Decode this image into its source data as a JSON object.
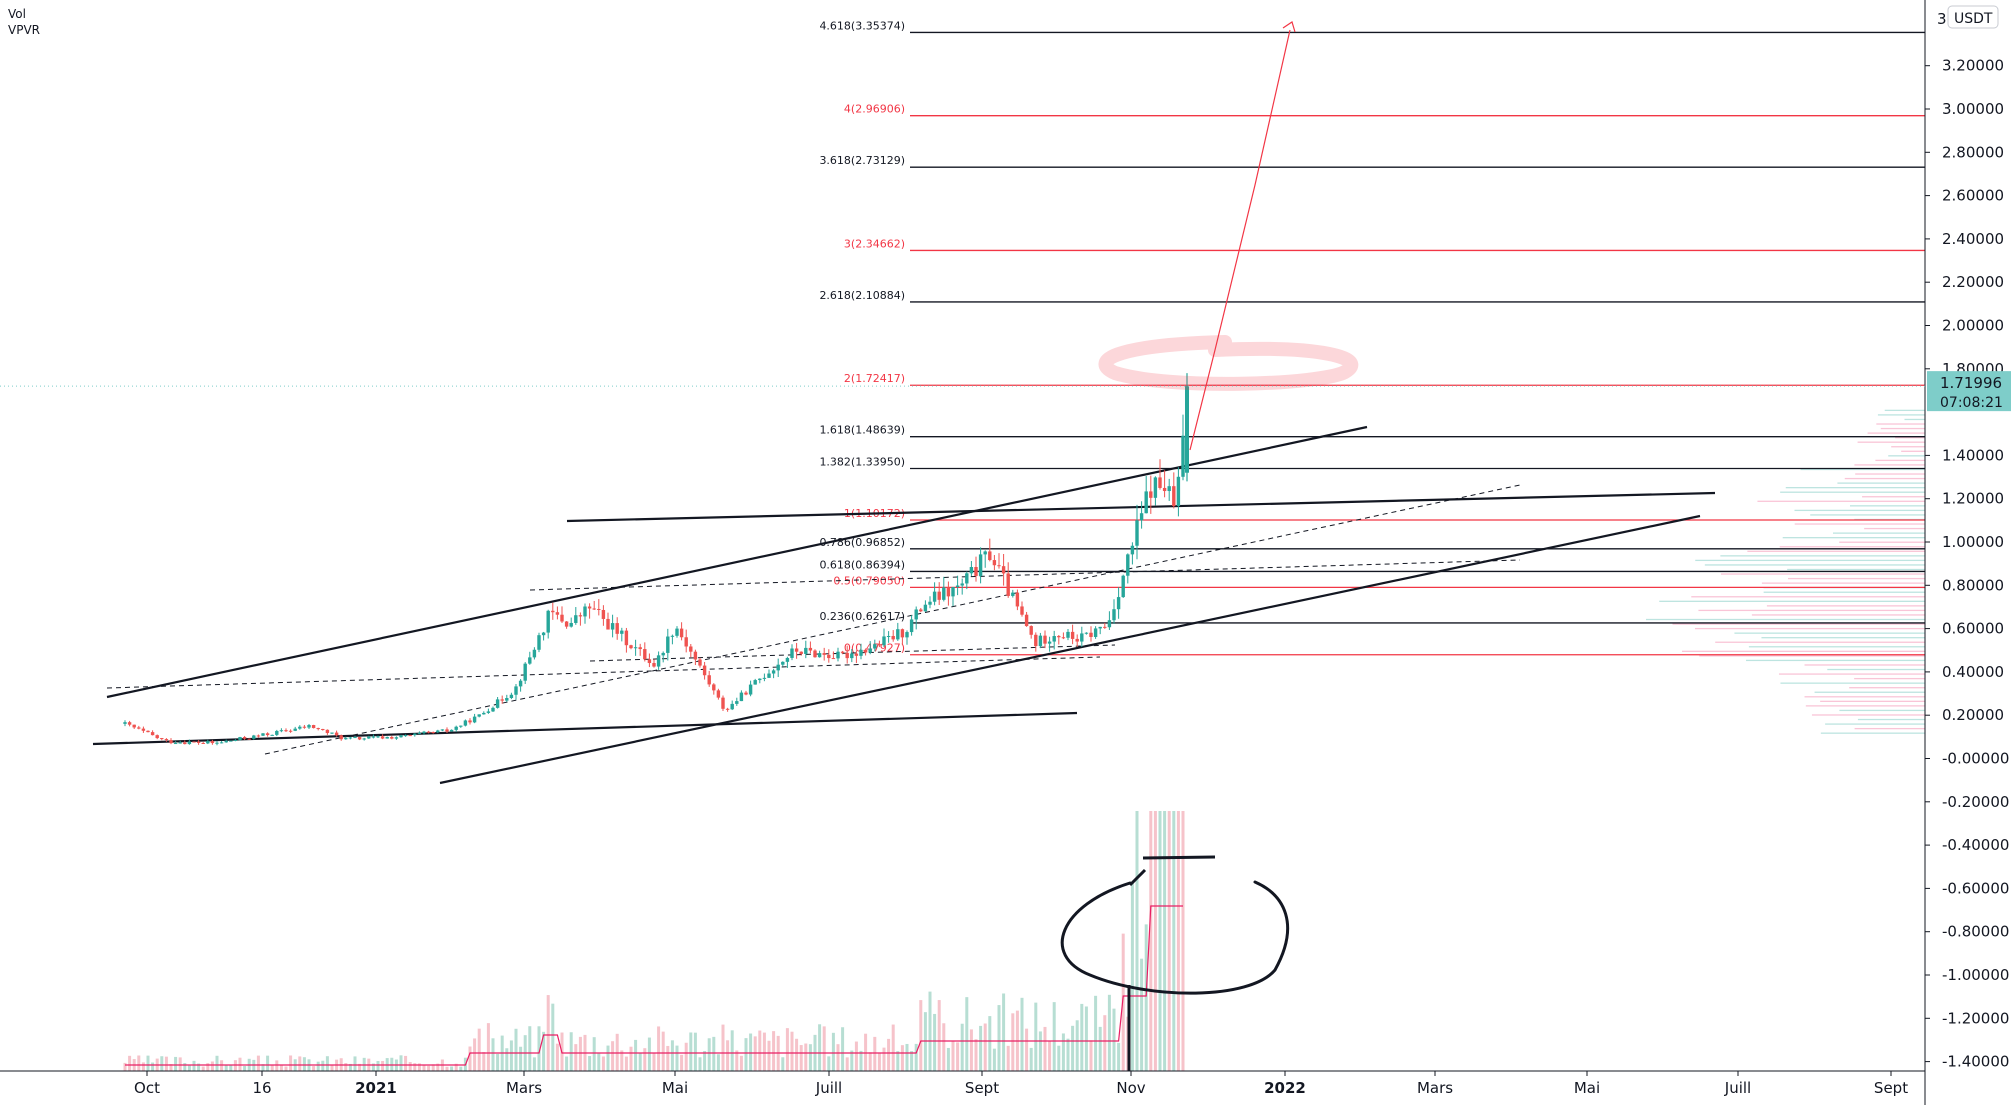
{
  "indicators": [
    "Vol",
    "VPVR"
  ],
  "currency": "USDT",
  "price": {
    "value": "1.71996",
    "countdown": "07:08:21",
    "value_num": 1.71996,
    "color": "#7ecdc9"
  },
  "colors": {
    "up": "#26a69a",
    "down": "#ef5350",
    "fib_black": "#131722",
    "fib_red": "#f23645",
    "marker": "#f23645"
  },
  "chart_data": {
    "type": "candlestick",
    "title": "",
    "ylabel": "USDT",
    "ylim": [
      -1.42,
      3.47
    ],
    "y_ticks": [
      "3.20000",
      "3.00000",
      "2.80000",
      "2.60000",
      "2.40000",
      "2.20000",
      "2.00000",
      "1.80000",
      "1.40000",
      "1.20000",
      "1.00000",
      "0.80000",
      "0.60000",
      "0.40000",
      "0.20000",
      "-0.00000",
      "-0.20000",
      "-0.40000",
      "-0.60000",
      "-0.80000",
      "-1.00000",
      "-1.20000",
      "-1.40000"
    ],
    "y_tick_values": [
      3.2,
      3.0,
      2.8,
      2.6,
      2.4,
      2.2,
      2.0,
      1.8,
      1.4,
      1.2,
      1.0,
      0.8,
      0.6,
      0.4,
      0.2,
      0.0,
      -0.2,
      -0.4,
      -0.6,
      -0.8,
      -1.0,
      -1.2,
      -1.4
    ],
    "y_tick_top_partial": "3",
    "x_ticks": [
      "Oct",
      "16",
      "2021",
      "Mars",
      "Mai",
      "Juill",
      "Sept",
      "Nov",
      "2022",
      "Mars",
      "Mai",
      "Juill",
      "Sept"
    ],
    "x_tick_bold": [
      false,
      false,
      true,
      false,
      false,
      false,
      false,
      false,
      true,
      false,
      false,
      false,
      false
    ],
    "fib_levels": [
      {
        "label": "4.618(3.35374)",
        "value": 3.35374,
        "color": "black"
      },
      {
        "label": "4(2.96906)",
        "value": 2.96906,
        "color": "red"
      },
      {
        "label": "3.618(2.73129)",
        "value": 2.73129,
        "color": "black"
      },
      {
        "label": "3(2.34662)",
        "value": 2.34662,
        "color": "red"
      },
      {
        "label": "2.618(2.10884)",
        "value": 2.10884,
        "color": "black"
      },
      {
        "label": "2(1.72417)",
        "value": 1.72417,
        "color": "red"
      },
      {
        "label": "1.618(1.48639)",
        "value": 1.48639,
        "color": "black"
      },
      {
        "label": "1.382(1.33950)",
        "value": 1.3395,
        "color": "black"
      },
      {
        "label": "1(1.10172)",
        "value": 1.10172,
        "color": "red"
      },
      {
        "label": "0.786(0.96852)",
        "value": 0.96852,
        "color": "black"
      },
      {
        "label": "0.618(0.86394)",
        "value": 0.86394,
        "color": "black"
      },
      {
        "label": "0.5(0.79050)",
        "value": 0.7905,
        "color": "red"
      },
      {
        "label": "0.236(0.62617)",
        "value": 0.62617,
        "color": "black"
      },
      {
        "label": "0(0.47927)",
        "value": 0.47927,
        "color": "red"
      }
    ]
  }
}
